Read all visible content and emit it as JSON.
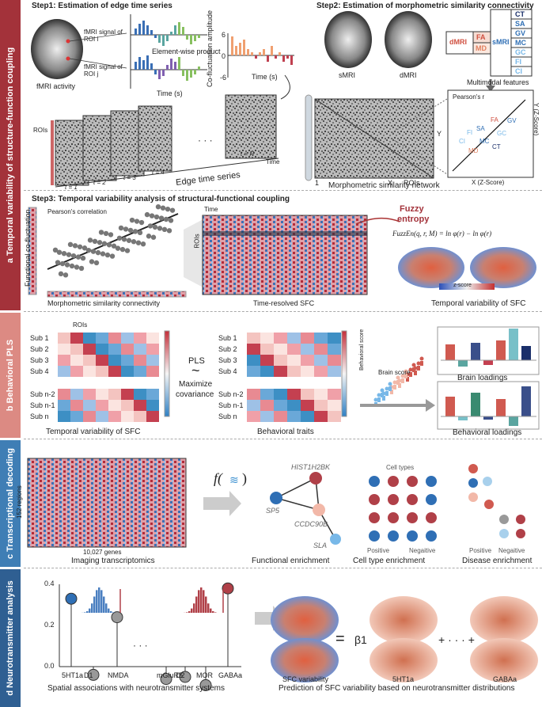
{
  "sections": {
    "a": "a Temporal variability of structure-function coupling",
    "b": "b Behavioral PLS",
    "c": "c Transcriptional decoding",
    "d": "d Neurotransmitter analysis"
  },
  "colors": {
    "a": "#a3323a",
    "b": "#dc8a83",
    "c": "#3f7eb5",
    "d": "#2f5f92"
  },
  "step1": {
    "title": "Step1: Estimation of edge time series",
    "fmri_activity": "fMRI activity",
    "signal_i": "fMRI signal of ROI i",
    "signal_j": "fMRI signal of ROI j",
    "product": "Element-wise product",
    "time": "Time (s)",
    "coamp": "Co-fluctuation amplitude",
    "ticks": [
      "6",
      "0",
      "-6"
    ],
    "rois": "ROIs",
    "t1": "t = 1",
    "t2": "t = 2",
    "t3": "t = 3",
    "t4": "t = 4",
    "tn": "t = N",
    "dots": "· · ·",
    "ets": "Edge time series",
    "time2": "Time"
  },
  "step2": {
    "title": "Step2: Estimation of morphometric similarity connectivity",
    "smri": "sMRI",
    "dmri": "dMRI",
    "dmri_box": "dMRI",
    "fa": "FA",
    "md": "MD",
    "smri_box": "sMRI",
    "features": [
      "CT",
      "SA",
      "GV",
      "MC",
      "GC",
      "FI",
      "CI"
    ],
    "multimodal": "Multimodal features",
    "pearson": "Pearson's r",
    "y_axis": "Y (Z-Score)",
    "x_axis": "X (Z-Score)",
    "x": "X",
    "y": "Y",
    "rois": "ROIs",
    "one": "1",
    "msn": "Morphometric similarity network"
  },
  "step3": {
    "title": "Step3: Temporal variability analysis of structural-functional coupling",
    "func_cofl": "Functional co-fluctuation",
    "pearson": "Pearson's correlation",
    "msc": "Morphometric similarity connectivity",
    "time": "Time",
    "rois": "ROIs",
    "tr_sfc": "Time-resolved SFC",
    "fuzzy1": "Fuzzy",
    "fuzzy2": "entropy",
    "formula": "FuzzEn(q, r, M) = ln φ(r) − ln φ(r)",
    "zscore": "z-score",
    "tv_sfc": "Temporal variability of SFC"
  },
  "pls": {
    "rois": "ROIs",
    "subs": [
      "Sub 1",
      "Sub 2",
      "Sub 3",
      "Sub 4",
      "Sub n-2",
      "Sub n-1",
      "Sub n"
    ],
    "dots": ":",
    "pls": "PLS",
    "tilde": "~",
    "maximize": "Maximize",
    "covariance": "covariance",
    "tv_sfc": "Temporal variability of SFC",
    "beh_traits": "Behavioral traits",
    "beh_score": "Behavioral score",
    "brain_score": "Brain score",
    "brain_loadings": "Brain loadings",
    "beh_loadings": "Behavioral loadings"
  },
  "trans": {
    "regions": "152 regions",
    "genes": "10,027 genes",
    "imaging": "Imaging transcriptomics",
    "f": "f(",
    "paren": ")",
    "genes_list": [
      "HIST1H2BK",
      "SP5",
      "CCDC90B",
      "SLA"
    ],
    "func_enrich": "Functional enrichment",
    "cell_types": "Cell types",
    "positive": "Positive",
    "negative": "Negaitive",
    "cell_enrich": "Cell type enrichment",
    "positive2": "Positive",
    "negative2": "Negaitive",
    "disease_enrich": "Disease enrichment"
  },
  "neuro": {
    "yticks": [
      "0.4",
      "0.2",
      "0.0"
    ],
    "xlabels": [
      "5HT1a",
      "D1",
      "NMDA",
      "mGluR5",
      "D2",
      "MOR",
      "GABAa"
    ],
    "dots": "· · ·",
    "spatial": "Spatial associations with neurotransmitter systems",
    "sfc_var": "SFC variability",
    "eq": "=",
    "b1": "β1",
    "plus": "+ · · · +",
    "bn": "βn",
    "ht1a": "5HT1a",
    "gabaa": "GABAa",
    "pred": "Prediction of SFC variability based on neurotransmitter distributions"
  }
}
